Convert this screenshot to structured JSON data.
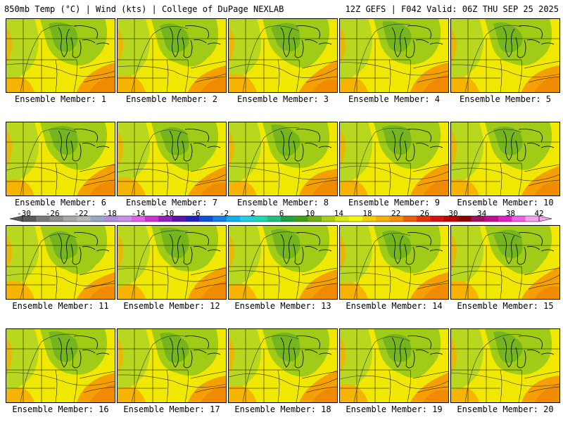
{
  "header": {
    "left": "850mb Temp (°C) | Wind (kts) | College of DuPage NEXLAB",
    "right": "12Z GEFS | F042 Valid: 06Z THU SEP 25 2025"
  },
  "panels": [
    {
      "label": "Ensemble Member: 1"
    },
    {
      "label": "Ensemble Member: 2"
    },
    {
      "label": "Ensemble Member: 3"
    },
    {
      "label": "Ensemble Member: 4"
    },
    {
      "label": "Ensemble Member: 5"
    },
    {
      "label": "Ensemble Member: 6"
    },
    {
      "label": "Ensemble Member: 7"
    },
    {
      "label": "Ensemble Member: 8"
    },
    {
      "label": "Ensemble Member: 9"
    },
    {
      "label": "Ensemble Member: 10"
    },
    {
      "label": "Ensemble Member: 11"
    },
    {
      "label": "Ensemble Member: 12"
    },
    {
      "label": "Ensemble Member: 13"
    },
    {
      "label": "Ensemble Member: 14"
    },
    {
      "label": "Ensemble Member: 15"
    },
    {
      "label": "Ensemble Member: 16"
    },
    {
      "label": "Ensemble Member: 17"
    },
    {
      "label": "Ensemble Member: 18"
    },
    {
      "label": "Ensemble Member: 19"
    },
    {
      "label": "Ensemble Member: 20"
    }
  ],
  "colorbar": {
    "labels": [
      "-30",
      "-26",
      "-22",
      "-18",
      "-14",
      "-10",
      "-6",
      "-2",
      "2",
      "6",
      "10",
      "14",
      "18",
      "22",
      "26",
      "30",
      "34",
      "38",
      "42"
    ],
    "colors": [
      "#5a5a5a",
      "#7a7a7a",
      "#8f8f8f",
      "#a8a8a8",
      "#b8b8b8",
      "#9aa8c8",
      "#b090d8",
      "#c890e8",
      "#e060e8",
      "#d030d0",
      "#9020c0",
      "#6010b0",
      "#2020c0",
      "#1050e0",
      "#1080f0",
      "#10b0f0",
      "#20d0e0",
      "#20d8b0",
      "#20c080",
      "#20a040",
      "#40a010",
      "#70b010",
      "#a8d010",
      "#d8e810",
      "#f8f800",
      "#f8d000",
      "#f8b000",
      "#f89000",
      "#f06000",
      "#e83000",
      "#d81010",
      "#c00000",
      "#900000",
      "#a01060",
      "#c01090",
      "#e020c0",
      "#f060e0",
      "#f8a0f0"
    ]
  }
}
